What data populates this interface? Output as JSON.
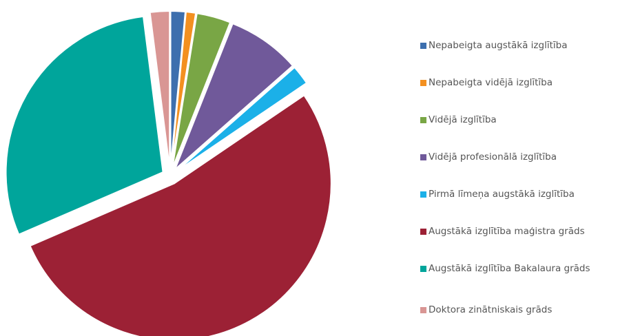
{
  "chart_data": {
    "type": "pie",
    "categories": [
      "Nepabeigta augstākā izglītība",
      "Nepabeigta vidējā izglītība",
      "Vidējā izglītība",
      "Vidējā profesionālā izglītība",
      "Pirmā līmeņa augstākā izglītība",
      "Augstākā izglītība maģistra grāds",
      "Augstākā izglītība Bakalaura grāds",
      "Doktora zinātniskais grāds"
    ],
    "values": [
      1.5,
      1,
      3.5,
      7.5,
      2,
      53,
      29.5,
      2
    ],
    "colors": [
      "#3d6fae",
      "#f39020",
      "#79a645",
      "#70599a",
      "#1bb0e8",
      "#9c2135",
      "#00a59b",
      "#d99694"
    ],
    "legend": "right"
  }
}
